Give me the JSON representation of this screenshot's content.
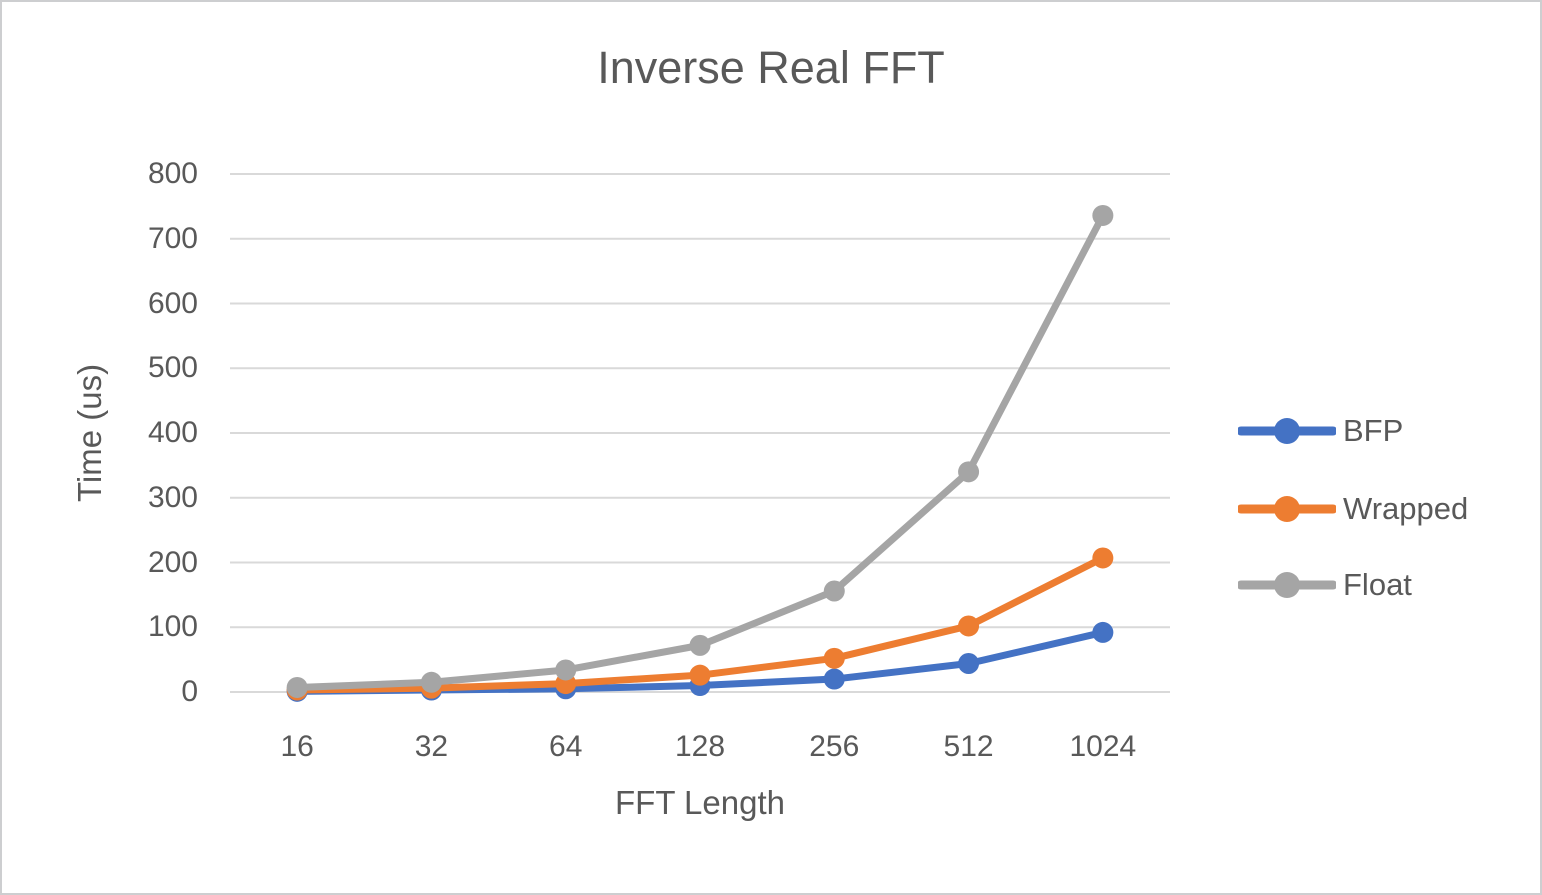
{
  "chart_data": {
    "type": "line",
    "title": "Inverse Real FFT",
    "xlabel": "FFT Length",
    "ylabel": "Time (us)",
    "categories": [
      "16",
      "32",
      "64",
      "128",
      "256",
      "512",
      "1024"
    ],
    "series": [
      {
        "name": "BFP",
        "color": "#4472C4",
        "values": [
          1,
          3,
          5,
          10,
          20,
          44,
          92
        ]
      },
      {
        "name": "Wrapped",
        "color": "#ED7D31",
        "values": [
          3,
          6,
          13,
          26,
          52,
          102,
          207
        ]
      },
      {
        "name": "Float",
        "color": "#A5A5A5",
        "values": [
          7,
          15,
          34,
          72,
          156,
          340,
          736
        ]
      }
    ],
    "ylim": [
      0,
      800
    ],
    "yticks": [
      0,
      100,
      200,
      300,
      400,
      500,
      600,
      700,
      800
    ],
    "grid": true,
    "grid_color": "#D9D9D9",
    "text_color": "#595959",
    "legend_position": "right"
  }
}
